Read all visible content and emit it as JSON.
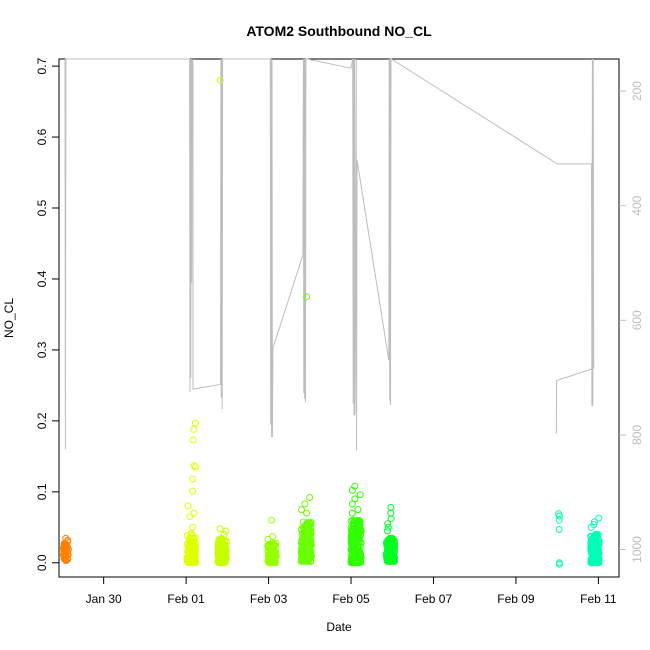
{
  "chart_data": {
    "type": "scatter",
    "title": "ATOM2 Southbound NO_CL",
    "xlabel": "Date",
    "ylabel": "NO_CL",
    "x_ticks": [
      {
        "date": "2017-01-30",
        "label": "Jan 30"
      },
      {
        "date": "2017-02-01",
        "label": "Feb 01"
      },
      {
        "date": "2017-02-03",
        "label": "Feb 03"
      },
      {
        "date": "2017-02-05",
        "label": "Feb 05"
      },
      {
        "date": "2017-02-07",
        "label": "Feb 07"
      },
      {
        "date": "2017-02-09",
        "label": "Feb 09"
      },
      {
        "date": "2017-02-11",
        "label": "Feb 11"
      }
    ],
    "xlim": [
      "2017-01-28T22:00",
      "2017-02-11T12:00"
    ],
    "ylim": [
      -0.02,
      0.71
    ],
    "y_ticks": [
      0.0,
      0.1,
      0.2,
      0.3,
      0.4,
      0.5,
      0.6,
      0.7
    ],
    "y_tick_labels": [
      "0.0",
      "0.1",
      "0.2",
      "0.3",
      "0.4",
      "0.5",
      "0.6",
      "0.7"
    ],
    "y2_ticks": [
      200,
      400,
      600,
      800,
      1000
    ],
    "y2_tick_labels": [
      "200",
      "400",
      "600",
      "800",
      "1000"
    ],
    "y2lim": [
      1048,
      144
    ],
    "y2_reversed": true,
    "grid": false,
    "legend": "none",
    "colors": {
      "trace": "#bdbdbd",
      "frame": "#000000",
      "right_axis": "#bdbdbd"
    },
    "clusters": [
      {
        "color": "#ff7f00",
        "center": "2017-01-29T02:00",
        "spread_hours": 1.5,
        "count": 40,
        "y_min": 0.003,
        "y_max": 0.036,
        "outliers": []
      },
      {
        "color": "#e0ff00",
        "center": "2017-02-01T03:00",
        "spread_hours": 2.5,
        "count": 120,
        "y_min": 0.0,
        "y_max": 0.04,
        "outliers": [
          0.197,
          0.188,
          0.173,
          0.137,
          0.135,
          0.118,
          0.101,
          0.08,
          0.07,
          0.065,
          0.05,
          0.042
        ]
      },
      {
        "color": "#c8ff00",
        "center": "2017-02-01T21:00",
        "spread_hours": 2.5,
        "count": 120,
        "y_min": 0.0,
        "y_max": 0.035,
        "outliers": [
          0.68,
          0.048,
          0.045,
          0.04
        ]
      },
      {
        "color": "#96ff00",
        "center": "2017-02-03T02:00",
        "spread_hours": 2.5,
        "count": 90,
        "y_min": 0.0,
        "y_max": 0.028,
        "outliers": [
          0.06,
          0.037,
          0.033
        ]
      },
      {
        "color": "#6bff00",
        "center": "2017-02-03T22:00",
        "spread_hours": 3.0,
        "count": 190,
        "y_min": 0.002,
        "y_max": 0.06,
        "outliers": [
          0.375,
          0.092,
          0.083,
          0.075,
          0.07
        ]
      },
      {
        "color": "#30ff00",
        "center": "2017-02-05T03:00",
        "spread_hours": 3.0,
        "count": 200,
        "y_min": 0.0,
        "y_max": 0.06,
        "outliers": [
          0.108,
          0.102,
          0.096,
          0.09,
          0.083,
          0.075,
          0.07
        ]
      },
      {
        "color": "#00ff22",
        "center": "2017-02-05T23:00",
        "spread_hours": 2.5,
        "count": 140,
        "y_min": 0.002,
        "y_max": 0.035,
        "outliers": [
          0.078,
          0.07,
          0.062,
          0.055,
          0.05,
          0.045
        ]
      },
      {
        "color": "#00ffa6",
        "center": "2017-02-10T01:00",
        "spread_hours": 0.5,
        "count": 0,
        "y_min": 0.0,
        "y_max": 0.0,
        "outliers": [
          0.069,
          0.066,
          0.06,
          0.047,
          0.0,
          -0.002
        ]
      },
      {
        "color": "#00ffb6",
        "center": "2017-02-10T22:00",
        "spread_hours": 2.5,
        "count": 150,
        "y_min": 0.0,
        "y_max": 0.04,
        "outliers": [
          0.063,
          0.058,
          0.054,
          0.05
        ]
      }
    ],
    "trace_points": [
      [
        "2017-01-29T01:30",
        144
      ],
      [
        "2017-01-29T01:45",
        825
      ],
      [
        "2017-01-29T02:00",
        144
      ],
      [
        "2017-02-01T02:00",
        144
      ],
      [
        "2017-02-01T02:15",
        725
      ],
      [
        "2017-02-01T02:30",
        144
      ],
      [
        "2017-02-01T02:45",
        700
      ],
      [
        "2017-02-01T03:00",
        144
      ],
      [
        "2017-02-01T03:15",
        535
      ],
      [
        "2017-02-01T03:30",
        144
      ],
      [
        "2017-02-01T04:00",
        150
      ],
      [
        "2017-02-01T04:00",
        720
      ],
      [
        "2017-02-01T20:00",
        712
      ],
      [
        "2017-02-01T20:15",
        144
      ],
      [
        "2017-02-01T20:30",
        735
      ],
      [
        "2017-02-01T20:45",
        144
      ],
      [
        "2017-02-01T21:00",
        755
      ],
      [
        "2017-02-01T21:15",
        144
      ],
      [
        "2017-02-01T21:30",
        144
      ],
      [
        "2017-02-03T01:00",
        144
      ],
      [
        "2017-02-03T01:15",
        782
      ],
      [
        "2017-02-03T01:30",
        144
      ],
      [
        "2017-02-03T01:45",
        804
      ],
      [
        "2017-02-03T02:00",
        144
      ],
      [
        "2017-02-03T02:15",
        804
      ],
      [
        "2017-02-03T02:30",
        649
      ],
      [
        "2017-02-03T20:00",
        486
      ],
      [
        "2017-02-03T20:15",
        144
      ],
      [
        "2017-02-03T20:30",
        727
      ],
      [
        "2017-02-03T20:45",
        144
      ],
      [
        "2017-02-03T21:00",
        737
      ],
      [
        "2017-02-03T21:15",
        144
      ],
      [
        "2017-02-03T21:30",
        743
      ],
      [
        "2017-02-03T21:45",
        144
      ],
      [
        "2017-02-03T22:30",
        144
      ],
      [
        "2017-02-05T00:00",
        160
      ],
      [
        "2017-02-05T01:00",
        144
      ],
      [
        "2017-02-05T01:15",
        745
      ],
      [
        "2017-02-05T01:30",
        144
      ],
      [
        "2017-02-05T01:45",
        766
      ],
      [
        "2017-02-05T02:00",
        144
      ],
      [
        "2017-02-05T02:15",
        766
      ],
      [
        "2017-02-05T02:30",
        692
      ],
      [
        "2017-02-05T03:00",
        144
      ],
      [
        "2017-02-05T03:15",
        827
      ],
      [
        "2017-02-05T03:30",
        320
      ],
      [
        "2017-02-05T22:00",
        670
      ],
      [
        "2017-02-05T22:15",
        144
      ],
      [
        "2017-02-05T22:30",
        740
      ],
      [
        "2017-02-05T22:45",
        144
      ],
      [
        "2017-02-05T23:00",
        748
      ],
      [
        "2017-02-05T23:15",
        144
      ],
      [
        "2017-02-05T23:30",
        144
      ],
      [
        "2017-02-10T00:00",
        327
      ],
      [
        "2017-02-10T20:00",
        327
      ],
      [
        "2017-02-10T20:15",
        750
      ],
      [
        "2017-02-10T20:30",
        144
      ],
      [
        "2017-02-10T20:45",
        749
      ],
      [
        "2017-02-10T21:00",
        144
      ],
      [
        "2017-02-10T21:15",
        684
      ]
    ],
    "trace_tail": [
      [
        "2017-02-09T23:30",
        798
      ],
      [
        "2017-02-09T23:45",
        705
      ],
      [
        "2017-02-10T21:15",
        684
      ]
    ]
  }
}
